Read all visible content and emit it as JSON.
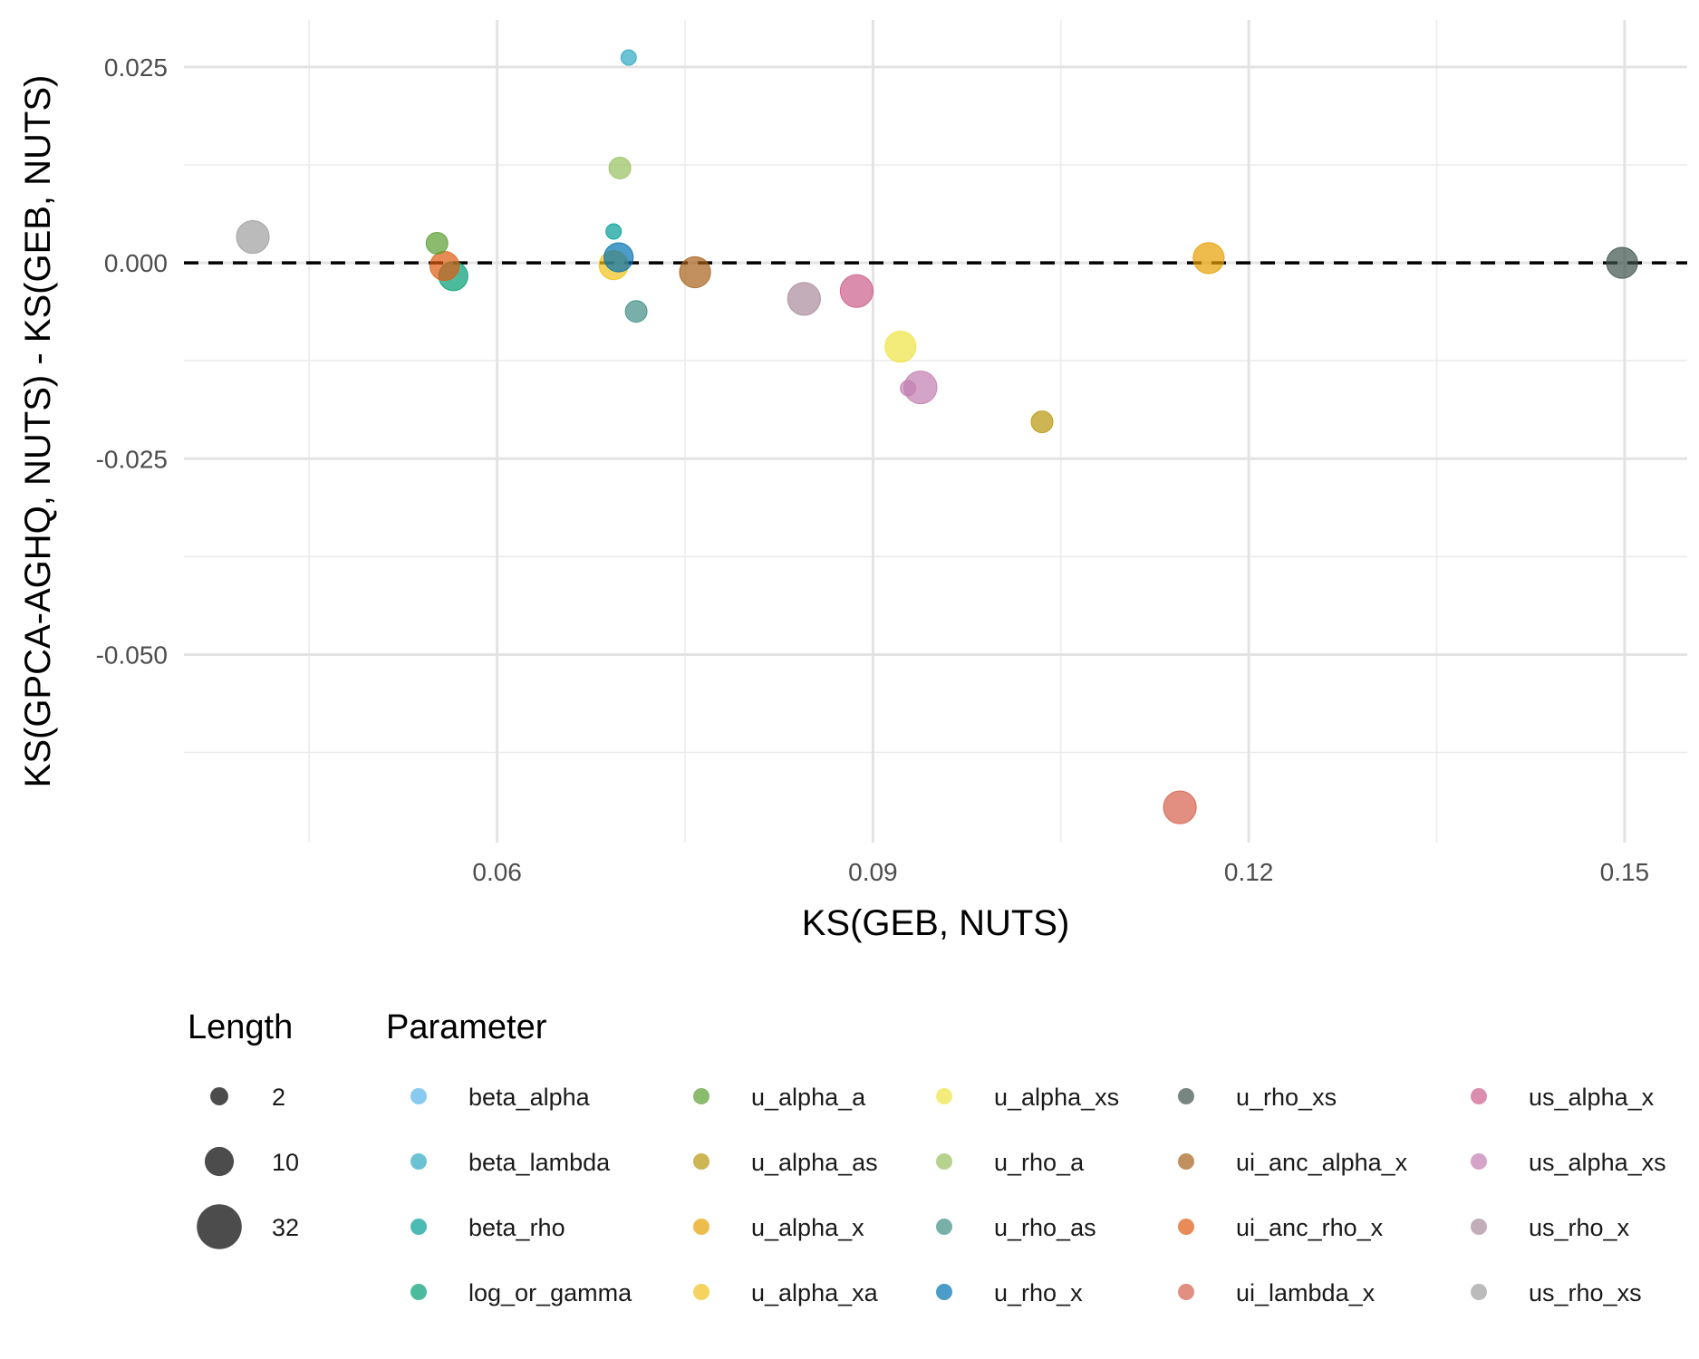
{
  "chart_data": {
    "type": "scatter",
    "title": "",
    "xlabel": "KS(GEB, NUTS)",
    "ylabel": "KS(GPCA-AGHQ, NUTS) - KS(GEB, NUTS)",
    "xlim": [
      0.035,
      0.155
    ],
    "ylim": [
      -0.074,
      0.031
    ],
    "x_ticks": [
      0.06,
      0.09,
      0.12,
      0.15
    ],
    "x_tick_labels": [
      "0.06",
      "0.09",
      "0.12",
      "0.15"
    ],
    "y_ticks": [
      0.025,
      0.0,
      -0.025,
      -0.05
    ],
    "y_tick_labels": [
      "0.025",
      "0.000",
      "-0.025",
      "-0.050"
    ],
    "x_minor": [
      0.045,
      0.075,
      0.105,
      0.135
    ],
    "y_minor": [
      0.0125,
      -0.0125,
      -0.0375,
      -0.0625
    ],
    "grid": true,
    "reference_line": {
      "y": 0,
      "style": "dashed"
    },
    "point_opacity": 0.7,
    "size_legend": {
      "title": "Length",
      "entries": [
        {
          "label": "2",
          "value": 2
        },
        {
          "label": "10",
          "value": 10
        },
        {
          "label": "32",
          "value": 32
        }
      ]
    },
    "color_legend": {
      "title": "Parameter",
      "placement": "bottom"
    },
    "series": [
      {
        "name": "beta_alpha",
        "color": "#56B4E9",
        "points": []
      },
      {
        "name": "beta_lambda",
        "color": "#2CA8C2",
        "points": [
          {
            "x": 0.0705,
            "y": 0.0262,
            "size": 1
          }
        ]
      },
      {
        "name": "beta_rho",
        "color": "#009E96",
        "points": [
          {
            "x": 0.0693,
            "y": 0.004,
            "size": 1
          }
        ]
      },
      {
        "name": "log_or_gamma",
        "color": "#009E73",
        "points": [
          {
            "x": 0.0565,
            "y": -0.0017,
            "size": 10
          }
        ]
      },
      {
        "name": "u_alpha_a",
        "color": "#5A9E32",
        "points": [
          {
            "x": 0.0552,
            "y": 0.0025,
            "size": 4
          }
        ]
      },
      {
        "name": "u_alpha_as",
        "color": "#B8960C",
        "points": [
          {
            "x": 0.1035,
            "y": -0.0203,
            "size": 4
          }
        ]
      },
      {
        "name": "u_alpha_x",
        "color": "#E69F00",
        "points": [
          {
            "x": 0.1168,
            "y": 0.0006,
            "size": 12
          }
        ]
      },
      {
        "name": "u_alpha_xa",
        "color": "#F0C21A",
        "points": [
          {
            "x": 0.0693,
            "y": -0.0003,
            "size": 10
          }
        ]
      },
      {
        "name": "u_alpha_xs",
        "color": "#F0E442",
        "points": [
          {
            "x": 0.0922,
            "y": -0.0107,
            "size": 12
          }
        ]
      },
      {
        "name": "u_rho_a",
        "color": "#97C05E",
        "points": [
          {
            "x": 0.0698,
            "y": 0.0121,
            "size": 4
          }
        ]
      },
      {
        "name": "u_rho_as",
        "color": "#3E8F84",
        "points": [
          {
            "x": 0.0711,
            "y": -0.0062,
            "size": 4
          }
        ]
      },
      {
        "name": "u_rho_x",
        "color": "#0072B2",
        "points": [
          {
            "x": 0.0697,
            "y": 0.0007,
            "size": 10
          }
        ]
      },
      {
        "name": "u_rho_xs",
        "color": "#3F534C",
        "points": [
          {
            "x": 0.1498,
            "y": 0.0,
            "size": 12
          }
        ]
      },
      {
        "name": "ui_anc_alpha_x",
        "color": "#A6611A",
        "points": [
          {
            "x": 0.0758,
            "y": -0.0012,
            "size": 12
          }
        ]
      },
      {
        "name": "ui_anc_rho_x",
        "color": "#E05A10",
        "points": [
          {
            "x": 0.0558,
            "y": -0.0004,
            "size": 10
          }
        ]
      },
      {
        "name": "ui_lambda_x",
        "color": "#D6604D",
        "points": [
          {
            "x": 0.1145,
            "y": -0.0695,
            "size": 14
          }
        ]
      },
      {
        "name": "us_alpha_x",
        "color": "#CC5C8A",
        "points": [
          {
            "x": 0.0887,
            "y": -0.0036,
            "size": 14
          }
        ]
      },
      {
        "name": "us_alpha_xs",
        "color": "#C27EB0",
        "points": [
          {
            "x": 0.0938,
            "y": -0.0159,
            "size": 14
          },
          {
            "x": 0.0928,
            "y": -0.016,
            "size": 1
          }
        ]
      },
      {
        "name": "us_rho_x",
        "color": "#A88A9A",
        "points": [
          {
            "x": 0.0845,
            "y": -0.0046,
            "size": 14
          }
        ]
      },
      {
        "name": "us_rho_xs",
        "color": "#9E9E9E",
        "points": [
          {
            "x": 0.0405,
            "y": 0.0033,
            "size": 14
          }
        ]
      }
    ]
  }
}
